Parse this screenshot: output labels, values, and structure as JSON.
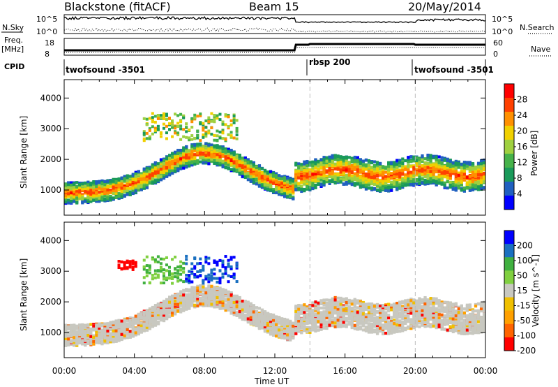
{
  "header": {
    "station": "Blackstone (fitACF)",
    "beam": "Beam 15",
    "date": "20/May/2014"
  },
  "top_panels": {
    "nsky_label": "N.Sky",
    "nsky_ticks": [
      "10^5",
      "10^0"
    ],
    "nsearch_label": "N.Search",
    "nsearch_ticks": [
      "10^5",
      "10^0"
    ],
    "freq_label": "Freq.",
    "freq_unit": "[MHz]",
    "freq_ticks": [
      "18",
      "8"
    ],
    "nave_label": "Nave",
    "nave_ticks": [
      "60",
      "0"
    ],
    "cpid_label": "CPID",
    "cpid_segments": [
      {
        "name": "twofsound -3501",
        "start_hour": 0,
        "end_hour": 14
      },
      {
        "name": "rbsp 200",
        "start_hour": 14,
        "end_hour": 20
      },
      {
        "name": "twofsound -3501",
        "start_hour": 20,
        "end_hour": 24
      }
    ]
  },
  "chart_data": [
    {
      "type": "heatmap",
      "panel": "power",
      "ylabel": "Slant Range [km]",
      "xlabel": "",
      "x_ticks": [
        "00:00",
        "04:00",
        "08:00",
        "12:00",
        "16:00",
        "20:00",
        "00:00"
      ],
      "y_ticks": [
        "1000",
        "2000",
        "3000",
        "4000"
      ],
      "xlim_hours": [
        0,
        24
      ],
      "ylim_km": [
        180,
        4600
      ],
      "colorbar_label": "Power [dB]",
      "colorbar_ticks": [
        "28",
        "24",
        "20",
        "16",
        "12",
        "8",
        "4"
      ],
      "colorbar_range": [
        0,
        30
      ]
    },
    {
      "type": "heatmap",
      "panel": "velocity",
      "ylabel": "Slant Range [km]",
      "xlabel": "Time UT",
      "x_ticks": [
        "00:00",
        "04:00",
        "08:00",
        "12:00",
        "16:00",
        "20:00",
        "00:00"
      ],
      "y_ticks": [
        "1000",
        "2000",
        "3000",
        "4000"
      ],
      "xlim_hours": [
        0,
        24
      ],
      "ylim_km": [
        180,
        4600
      ],
      "colorbar_label": "Velocity [m s^-1]",
      "colorbar_ticks": [
        "200",
        "100",
        "50",
        "15",
        "-15",
        "-50",
        "-100",
        "-200"
      ],
      "colorbar_range": [
        -250,
        250
      ]
    }
  ],
  "colors": {
    "power_scale": [
      "#0000ff",
      "#2060c0",
      "#1a9a5a",
      "#46b24a",
      "#9fd040",
      "#f0d000",
      "#ff9000",
      "#ff4000",
      "#ff0000"
    ],
    "velocity_scale": [
      "#ff0000",
      "#ff6400",
      "#ffa000",
      "#f0c000",
      "#c8c8c0",
      "#80d040",
      "#40b040",
      "#1a70c0",
      "#0000ff"
    ],
    "ground_scatter": "#c8c8c0"
  }
}
